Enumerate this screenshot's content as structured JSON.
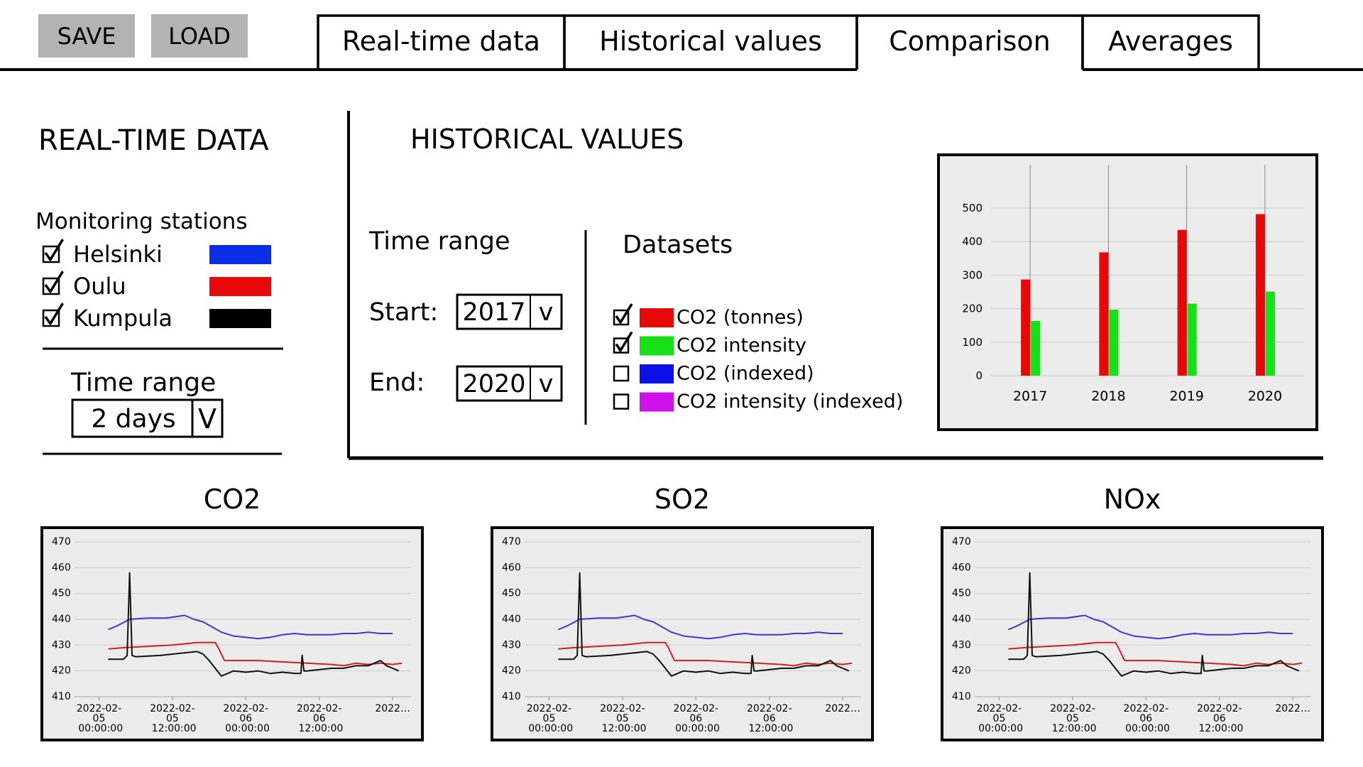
{
  "toolbar": {
    "buttons": [
      "SAVE",
      "LOAD"
    ]
  },
  "tabs": {
    "items": [
      "Real-time data",
      "Historical values",
      "Comparison",
      "Averages"
    ],
    "active": 2
  },
  "realtime": {
    "title": "REAL-TIME DATA",
    "stations_label": "Monitoring stations",
    "stations": [
      {
        "name": "Helsinki",
        "color": "#0a2ee6",
        "checked": true
      },
      {
        "name": "Oulu",
        "color": "#e60a0a",
        "checked": true
      },
      {
        "name": "Kumpula",
        "color": "#000000",
        "checked": true
      }
    ],
    "time_range_label": "Time range",
    "time_range": "2 days",
    "dropdown": "V"
  },
  "historical": {
    "title": "HISTORICAL VALUES",
    "time_range_label": "Time range",
    "start_label": "Start:",
    "start": "2017",
    "end_label": "End:",
    "end": "2020",
    "dropdown": "v",
    "datasets_label": "Datasets",
    "datasets": [
      {
        "name": "CO2 (tonnes)",
        "color": "#e80808",
        "checked": true
      },
      {
        "name": "CO2 intensity",
        "color": "#18e018",
        "checked": true
      },
      {
        "name": "CO2 (indexed)",
        "color": "#0a10e6",
        "checked": false
      },
      {
        "name": "CO2 intensity (indexed)",
        "color": "#d010e8",
        "checked": false
      }
    ]
  },
  "chart_data": [
    {
      "type": "bar",
      "categories": [
        "2017",
        "2018",
        "2019",
        "2020"
      ],
      "series": [
        {
          "color": "#e80808",
          "values": [
            287,
            368,
            435,
            482
          ]
        },
        {
          "color": "#18e018",
          "values": [
            163,
            197,
            215,
            251
          ]
        }
      ],
      "ylim": [
        0,
        520
      ],
      "yticks": [
        0,
        100,
        200,
        300,
        400,
        500
      ],
      "grid": true
    },
    {
      "type": "line",
      "title": "CO2",
      "series": [
        {
          "color": "#3a3ad0",
          "x": [
            1.5,
            3,
            5,
            8,
            11,
            14,
            15.5,
            17,
            18.5,
            20,
            22,
            24,
            26,
            28,
            30,
            32,
            34,
            36,
            38,
            40,
            42,
            44,
            46,
            48
          ],
          "values": [
            436,
            437.5,
            440,
            440.5,
            440.5,
            441.5,
            440,
            439,
            437,
            435,
            433.5,
            433,
            432.5,
            433,
            434,
            434.5,
            434,
            434,
            434,
            434.5,
            434.5,
            435,
            434.5,
            434.5
          ]
        },
        {
          "color": "#d02020",
          "x": [
            1.5,
            4,
            8,
            12,
            16,
            19,
            19.5,
            20.5,
            22,
            26,
            30,
            34,
            38,
            40,
            42,
            44,
            46,
            48,
            49.5
          ],
          "values": [
            428.5,
            429,
            429.5,
            430,
            431,
            431,
            429,
            424,
            424,
            424,
            423.5,
            423,
            422.5,
            422,
            423,
            422.5,
            423,
            422.5,
            423
          ]
        },
        {
          "color": "#111111",
          "x": [
            1.5,
            4,
            4.6,
            5,
            5.4,
            6,
            10,
            14,
            16,
            17,
            18,
            19,
            20,
            21,
            22,
            24,
            26,
            28,
            30,
            32,
            33,
            33.2,
            33.5,
            34,
            36,
            38,
            40,
            42,
            44,
            45,
            46,
            47,
            48,
            49
          ],
          "values": [
            424.5,
            424.5,
            426,
            458,
            426,
            425.5,
            426,
            427,
            427.5,
            426.5,
            424,
            421,
            418,
            419,
            420,
            419.5,
            420,
            419,
            419.5,
            419,
            419,
            426,
            420,
            420,
            420.5,
            421,
            421,
            422,
            422,
            423,
            424,
            422,
            421,
            420
          ]
        }
      ],
      "xlim": [
        -4,
        51
      ],
      "xticks": [
        {
          "value": 0,
          "label": "2022-02-05 00:00:00"
        },
        {
          "value": 12,
          "label": "2022-02-05 12:00:00"
        },
        {
          "value": 24,
          "label": "2022-02-06 00:00:00"
        },
        {
          "value": 36,
          "label": "2022-02-06 12:00:00"
        },
        {
          "value": 48,
          "label": "2022…"
        }
      ],
      "ylim": [
        410,
        470
      ],
      "yticks": [
        410,
        420,
        430,
        440,
        450,
        460,
        470
      ],
      "grid": true
    },
    {
      "type": "line",
      "title": "SO2",
      "series": [
        {
          "color": "#3a3ad0",
          "x": [
            1.5,
            3,
            5,
            8,
            11,
            14,
            15.5,
            17,
            18.5,
            20,
            22,
            24,
            26,
            28,
            30,
            32,
            34,
            36,
            38,
            40,
            42,
            44,
            46,
            48
          ],
          "values": [
            436,
            437.5,
            440,
            440.5,
            440.5,
            441.5,
            440,
            439,
            437,
            435,
            433.5,
            433,
            432.5,
            433,
            434,
            434.5,
            434,
            434,
            434,
            434.5,
            434.5,
            435,
            434.5,
            434.5
          ]
        },
        {
          "color": "#d02020",
          "x": [
            1.5,
            4,
            8,
            12,
            16,
            19,
            19.5,
            20.5,
            22,
            26,
            30,
            34,
            38,
            40,
            42,
            44,
            46,
            48,
            49.5
          ],
          "values": [
            428.5,
            429,
            429.5,
            430,
            431,
            431,
            429,
            424,
            424,
            424,
            423.5,
            423,
            422.5,
            422,
            423,
            422.5,
            423,
            422.5,
            423
          ]
        },
        {
          "color": "#111111",
          "x": [
            1.5,
            4,
            4.6,
            5,
            5.4,
            6,
            10,
            14,
            16,
            17,
            18,
            19,
            20,
            21,
            22,
            24,
            26,
            28,
            30,
            32,
            33,
            33.2,
            33.5,
            34,
            36,
            38,
            40,
            42,
            44,
            45,
            46,
            47,
            48,
            49
          ],
          "values": [
            424.5,
            424.5,
            426,
            458,
            426,
            425.5,
            426,
            427,
            427.5,
            426.5,
            424,
            421,
            418,
            419,
            420,
            419.5,
            420,
            419,
            419.5,
            419,
            419,
            426,
            420,
            420,
            420.5,
            421,
            421,
            422,
            422,
            423,
            424,
            422,
            421,
            420
          ]
        }
      ],
      "xlim": [
        -4,
        51
      ],
      "xticks": [
        {
          "value": 0,
          "label": "2022-02-05 00:00:00"
        },
        {
          "value": 12,
          "label": "2022-02-05 12:00:00"
        },
        {
          "value": 24,
          "label": "2022-02-06 00:00:00"
        },
        {
          "value": 36,
          "label": "2022-02-06 12:00:00"
        },
        {
          "value": 48,
          "label": "2022…"
        }
      ],
      "ylim": [
        410,
        470
      ],
      "yticks": [
        410,
        420,
        430,
        440,
        450,
        460,
        470
      ],
      "grid": true
    },
    {
      "type": "line",
      "title": "NOx",
      "series": [
        {
          "color": "#3a3ad0",
          "x": [
            1.5,
            3,
            5,
            8,
            11,
            14,
            15.5,
            17,
            18.5,
            20,
            22,
            24,
            26,
            28,
            30,
            32,
            34,
            36,
            38,
            40,
            42,
            44,
            46,
            48
          ],
          "values": [
            436,
            437.5,
            440,
            440.5,
            440.5,
            441.5,
            440,
            439,
            437,
            435,
            433.5,
            433,
            432.5,
            433,
            434,
            434.5,
            434,
            434,
            434,
            434.5,
            434.5,
            435,
            434.5,
            434.5
          ]
        },
        {
          "color": "#d02020",
          "x": [
            1.5,
            4,
            8,
            12,
            16,
            19,
            19.5,
            20.5,
            22,
            26,
            30,
            34,
            38,
            40,
            42,
            44,
            46,
            48,
            49.5
          ],
          "values": [
            428.5,
            429,
            429.5,
            430,
            431,
            431,
            429,
            424,
            424,
            424,
            423.5,
            423,
            422.5,
            422,
            423,
            422.5,
            423,
            422.5,
            423
          ]
        },
        {
          "color": "#111111",
          "x": [
            1.5,
            4,
            4.6,
            5,
            5.4,
            6,
            10,
            14,
            16,
            17,
            18,
            19,
            20,
            21,
            22,
            24,
            26,
            28,
            30,
            32,
            33,
            33.2,
            33.5,
            34,
            36,
            38,
            40,
            42,
            44,
            45,
            46,
            47,
            48,
            49
          ],
          "values": [
            424.5,
            424.5,
            426,
            458,
            426,
            425.5,
            426,
            427,
            427.5,
            426.5,
            424,
            421,
            418,
            419,
            420,
            419.5,
            420,
            419,
            419.5,
            419,
            419,
            426,
            420,
            420,
            420.5,
            421,
            421,
            422,
            422,
            423,
            424,
            422,
            421,
            420
          ]
        }
      ],
      "xlim": [
        -4,
        51
      ],
      "xticks": [
        {
          "value": 0,
          "label": "2022-02-05 00:00:00"
        },
        {
          "value": 12,
          "label": "2022-02-05 12:00:00"
        },
        {
          "value": 24,
          "label": "2022-02-06 00:00:00"
        },
        {
          "value": 36,
          "label": "2022-02-06 12:00:00"
        },
        {
          "value": 48,
          "label": "2022…"
        }
      ],
      "ylim": [
        410,
        470
      ],
      "yticks": [
        410,
        420,
        430,
        440,
        450,
        460,
        470
      ],
      "grid": true
    }
  ]
}
